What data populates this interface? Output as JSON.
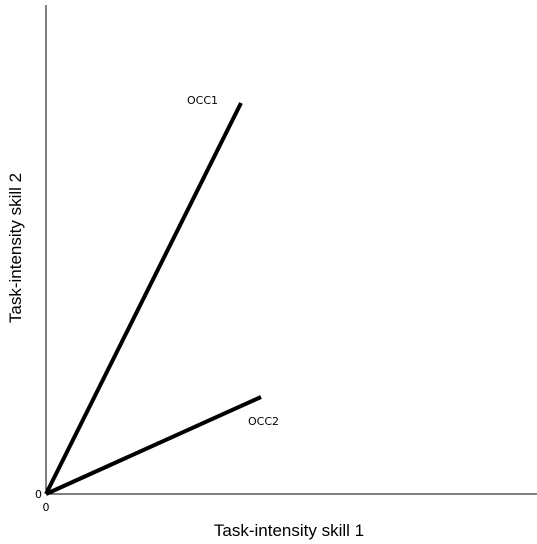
{
  "diagram": {
    "x_axis_label": "Task-intensity skill 1",
    "y_axis_label": "Task-intensity skill 2",
    "origin_labels": [
      "0",
      "0"
    ],
    "vectors": [
      {
        "label": "OCC1"
      },
      {
        "label": "OCC2"
      }
    ]
  }
}
